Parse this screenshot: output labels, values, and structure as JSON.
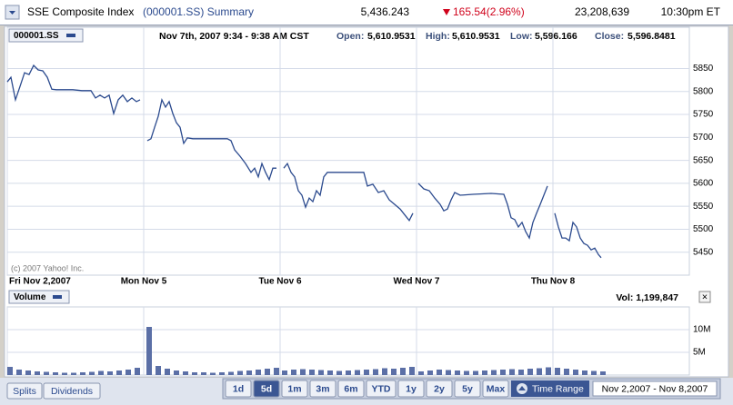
{
  "header": {
    "name": "SSE Composite Index",
    "symbol": "(000001.SS) Summary",
    "price": "5,436.243",
    "change": "165.54(2.96%)",
    "volume": "23,208,639",
    "time": "10:30pm ET"
  },
  "info": {
    "symbol_button": "000001.SS",
    "range": "Nov 7th, 2007 9:34 - 9:38 AM CST",
    "open_label": "Open:",
    "open": "5,610.9531",
    "high_label": "High:",
    "high": "5,610.9531",
    "low_label": "Low:",
    "low": "5,596.166",
    "close_label": "Close:",
    "close": "5,596.8481"
  },
  "copyright": "(c) 2007 Yahoo! Inc.",
  "chart_data": [
    {
      "type": "line",
      "color": "#2b4a8e",
      "x": [
        0,
        4,
        9,
        14,
        19,
        24,
        29,
        34,
        39,
        44,
        49,
        54,
        62,
        72,
        82,
        92,
        97,
        102,
        107,
        112,
        117,
        122,
        127,
        132,
        137,
        142,
        146,
        150,
        154,
        158,
        162,
        166,
        170,
        174,
        178,
        182,
        186,
        190,
        194,
        198,
        204,
        222,
        242,
        246,
        250,
        256,
        262,
        268,
        272,
        276,
        280,
        284,
        288,
        292,
        296,
        300,
        304,
        308,
        312,
        316,
        320,
        324,
        328,
        332,
        336,
        340,
        344,
        348,
        352,
        372,
        392,
        396,
        402,
        408,
        414,
        420,
        426,
        432,
        438,
        442,
        446,
        450,
        452,
        458,
        464,
        470,
        476,
        480,
        484,
        488,
        492,
        498,
        512,
        532,
        546,
        550,
        554,
        558,
        562,
        566,
        570,
        574,
        578,
        582,
        586,
        590,
        594,
        598,
        602,
        606,
        610,
        614,
        618,
        622,
        626,
        630,
        634,
        638,
        642,
        646,
        650,
        653
      ],
      "values": [
        5821,
        5831,
        5782,
        5811,
        5841,
        5837,
        5857,
        5847,
        5845,
        5831,
        5805,
        5804,
        5804,
        5804,
        5802,
        5802,
        5786,
        5792,
        5786,
        5792,
        5752,
        5782,
        5792,
        5778,
        5786,
        5778,
        5782,
        null,
        5693,
        5697,
        5722,
        5746,
        5782,
        5766,
        5778,
        5752,
        5732,
        5722,
        5687,
        5699,
        5697,
        5697,
        5697,
        5693,
        5673,
        5659,
        5643,
        5624,
        5633,
        5614,
        5643,
        5624,
        5608,
        5633,
        5633,
        null,
        5633,
        5643,
        5624,
        5614,
        5584,
        5574,
        5548,
        5568,
        5560,
        5584,
        5574,
        5614,
        5624,
        5624,
        5624,
        5594,
        5598,
        5580,
        5584,
        5564,
        5554,
        5544,
        5529,
        5519,
        5535,
        null,
        5600,
        5588,
        5584,
        5568,
        5554,
        5540,
        5544,
        5564,
        5580,
        5574,
        5576,
        5578,
        5576,
        5554,
        5525,
        5521,
        5505,
        5515,
        5495,
        5481,
        5515,
        5535,
        5554,
        5574,
        5594,
        null,
        5535,
        5505,
        5481,
        5481,
        5475,
        5515,
        5505,
        5481,
        5469,
        5465,
        5455,
        5459,
        5445,
        5438
      ],
      "xlim": [
        0,
        750
      ],
      "xticks": [
        {
          "value": 0,
          "label": "Fri Nov 2,2007"
        },
        {
          "value": 150,
          "label": "Mon Nov 5"
        },
        {
          "value": 300,
          "label": "Tue Nov 6"
        },
        {
          "value": 450,
          "label": "Wed Nov 7"
        },
        {
          "value": 600,
          "label": "Thu Nov 8"
        }
      ],
      "ylim": [
        5400,
        5940
      ],
      "yticks": [
        5450,
        5500,
        5550,
        5600,
        5650,
        5700,
        5750,
        5800,
        5850
      ],
      "grid": true
    },
    {
      "type": "bar",
      "color": "#5b6fa6",
      "x": [
        0,
        10,
        20,
        30,
        40,
        50,
        60,
        70,
        80,
        90,
        100,
        110,
        120,
        130,
        140,
        153,
        163,
        173,
        183,
        193,
        203,
        213,
        223,
        233,
        243,
        253,
        263,
        273,
        283,
        293,
        302,
        312,
        322,
        332,
        342,
        352,
        362,
        372,
        382,
        392,
        402,
        412,
        422,
        432,
        442,
        452,
        462,
        472,
        482,
        492,
        502,
        512,
        522,
        532,
        542,
        552,
        562,
        572,
        582,
        592,
        602,
        612,
        622,
        632,
        642,
        652
      ],
      "values": [
        1800000,
        1200000,
        1000000,
        800000,
        700000,
        600000,
        500000,
        500000,
        600000,
        700000,
        900000,
        800000,
        1000000,
        1200000,
        1600000,
        10600000,
        2000000,
        1400000,
        1000000,
        800000,
        600000,
        600000,
        500000,
        600000,
        700000,
        900000,
        1000000,
        1200000,
        1400000,
        1600000,
        1000000,
        1200000,
        1300000,
        1200000,
        1100000,
        1000000,
        900000,
        1000000,
        1100000,
        1200000,
        1300000,
        1500000,
        1400000,
        1600000,
        1800000,
        800000,
        1000000,
        1200000,
        1100000,
        1000000,
        900000,
        900000,
        1000000,
        1100000,
        1200000,
        1300000,
        1200000,
        1400000,
        1500000,
        1700000,
        1600000,
        1400000,
        1200000,
        1000000,
        900000,
        800000
      ],
      "xlim": [
        0,
        750
      ],
      "ylim": [
        0,
        15000000
      ],
      "yticks": [
        {
          "value": 5000000,
          "label": "5M"
        },
        {
          "value": 10000000,
          "label": "10M"
        }
      ],
      "grid": true
    }
  ],
  "volume_panel": {
    "button": "Volume",
    "vol": "Vol: 1,199,847",
    "close": "×"
  },
  "footer": {
    "buttons": [
      "Splits",
      "Dividends"
    ],
    "ranges": [
      "1d",
      "5d",
      "1m",
      "3m",
      "6m",
      "YTD",
      "1y",
      "2y",
      "5y",
      "Max"
    ],
    "selected": 1,
    "time_range_label": "Time Range",
    "date_range": "Nov 2,2007 - Nov 8,2007"
  }
}
